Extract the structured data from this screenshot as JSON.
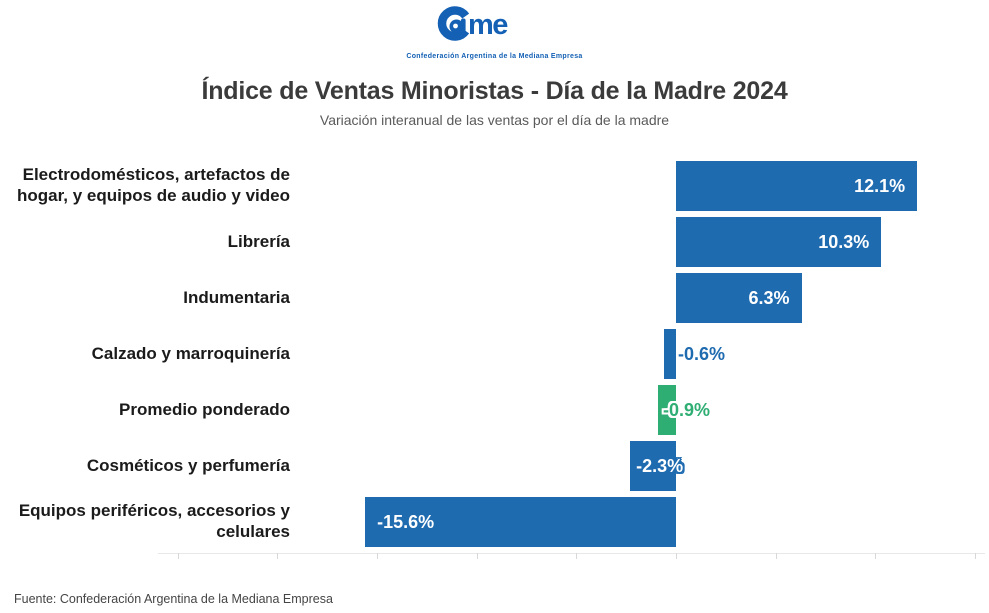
{
  "header": {
    "logo": {
      "name": "Came",
      "tagline": "Confederación Argentina de la Mediana Empresa"
    },
    "title": "Índice de Ventas Minoristas - Día de la Madre 2024",
    "subtitle": "Variación interanual de las ventas por el día de la madre"
  },
  "footer": {
    "source": "Fuente: Confederación Argentina de la Mediana Empresa"
  },
  "colors": {
    "bar_blue": "#1f6bb0",
    "bar_green": "#2fae74",
    "logo_blue": "#1360b4",
    "title_text": "#3b3b3b",
    "subtitle_text": "#5a5a5a",
    "category_text": "#1b1b1b",
    "axis_line": "#e8e8e8",
    "tick": "#d8d8d8"
  },
  "chart_data": {
    "type": "bar",
    "orientation": "horizontal",
    "title": "Índice de Ventas Minoristas - Día de la Madre 2024",
    "subtitle": "Variación interanual de las ventas por el día de la madre",
    "xlabel": "",
    "ylabel": "",
    "xlim": [
      -26,
      15.5
    ],
    "x_ticks": [
      -25,
      -20,
      -15,
      -10,
      -5,
      0,
      5,
      10,
      15
    ],
    "x_tick_labels_visible": false,
    "grid": false,
    "legend": "none",
    "items": [
      {
        "category": "Electrodomésticos, artefactos de hogar, y equipos de audio y video",
        "value": 12.1,
        "display": "12.1%",
        "color": "#1f6bb0",
        "label_mode": "inside-end",
        "label_color": "#ffffff"
      },
      {
        "category": "Librería",
        "value": 10.3,
        "display": "10.3%",
        "color": "#1f6bb0",
        "label_mode": "inside-end",
        "label_color": "#ffffff"
      },
      {
        "category": "Indumentaria",
        "value": 6.3,
        "display": "6.3%",
        "color": "#1f6bb0",
        "label_mode": "inside-end",
        "label_color": "#ffffff"
      },
      {
        "category": "Calzado y marroquinería",
        "value": -0.6,
        "display": "-0.6%",
        "color": "#1f6bb0",
        "label_mode": "zero-right",
        "label_color": "#1f6bb0",
        "outline": "white"
      },
      {
        "category": "Promedio ponderado",
        "value": -0.9,
        "display": "-0.9%",
        "color": "#2fae74",
        "label_mode": "zero-overlap",
        "label_color": "#2fae74",
        "outline": "white"
      },
      {
        "category": "Cosméticos y perfumería",
        "value": -2.3,
        "display": "-2.3%",
        "color": "#1f6bb0",
        "label_mode": "bar-straddle",
        "label_color": "#ffffff",
        "outline": "blue"
      },
      {
        "category": "Equipos periféricos, accesorios y celulares",
        "value": -15.6,
        "display": "-15.6%",
        "color": "#1f6bb0",
        "label_mode": "inside-start",
        "label_color": "#ffffff"
      }
    ]
  }
}
